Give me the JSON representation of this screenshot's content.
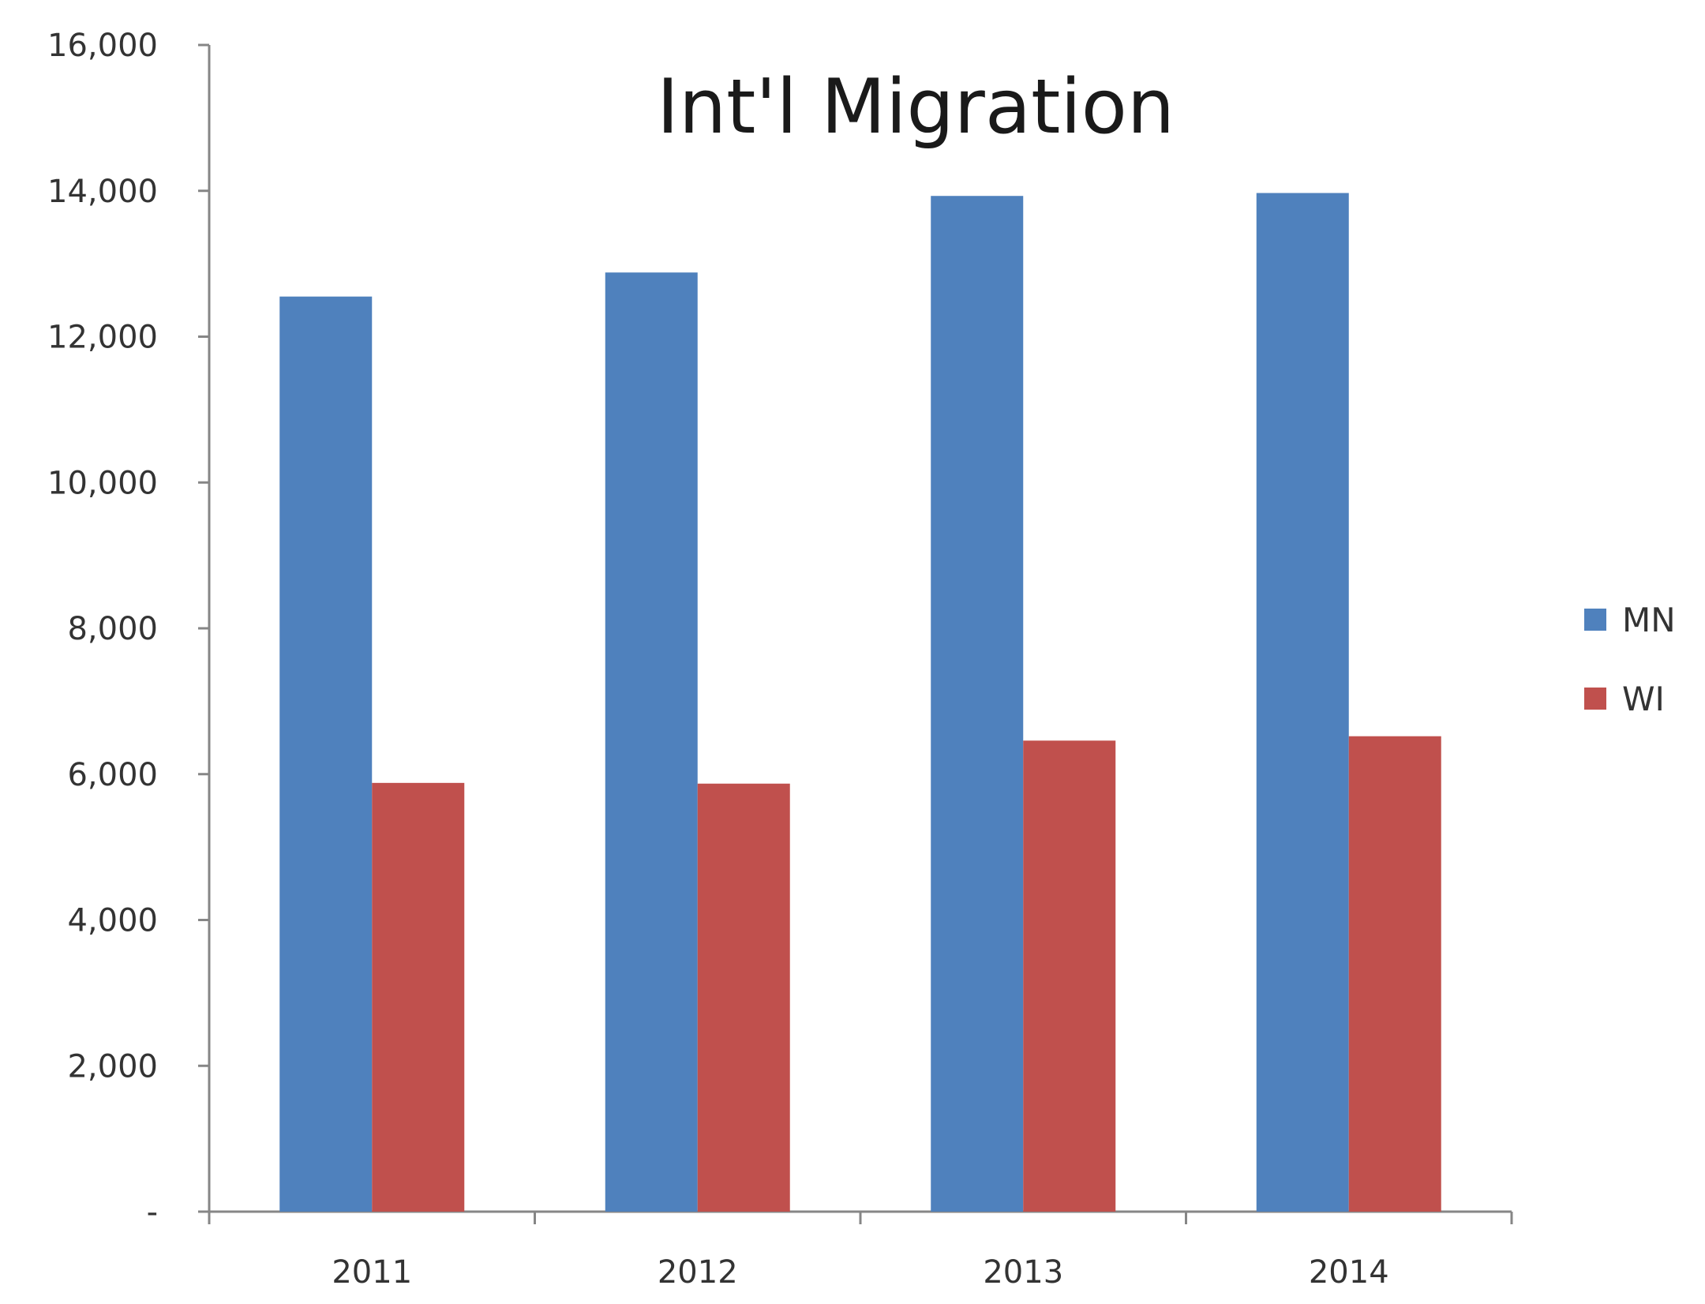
{
  "chart_data": {
    "type": "bar",
    "title": "Int'l Migration",
    "xlabel": "",
    "ylabel": "",
    "categories": [
      "2011",
      "2012",
      "2013",
      "2014"
    ],
    "series": [
      {
        "name": "MN",
        "color": "#4F81BD",
        "values": [
          12550,
          12880,
          13930,
          13970
        ]
      },
      {
        "name": "WI",
        "color": "#C0504D",
        "values": [
          5880,
          5870,
          6460,
          6520
        ]
      }
    ],
    "ylim": [
      0,
      16000
    ],
    "yticks": [
      0,
      2000,
      4000,
      6000,
      8000,
      10000,
      12000,
      14000,
      16000
    ],
    "ytick_labels": [
      "-",
      "2,000",
      "4,000",
      "6,000",
      "8,000",
      "10,000",
      "12,000",
      "14,000",
      "16,000"
    ],
    "grid": false,
    "legend_position": "right"
  }
}
